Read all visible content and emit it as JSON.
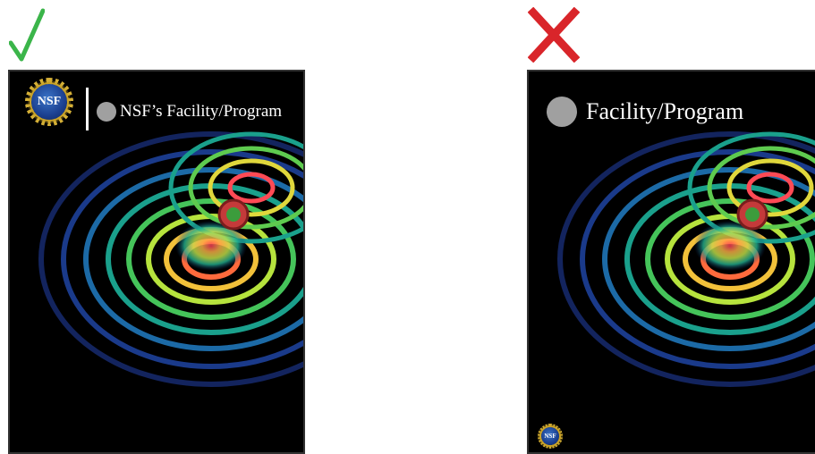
{
  "good_example": {
    "mark": "checkmark-icon",
    "mark_color": "#3bb54a",
    "seal_text": "NSF",
    "label": "NSF’s Facility/Program"
  },
  "bad_example": {
    "mark": "x-icon",
    "mark_color": "#d9252a",
    "seal_text": "NSF",
    "label": "Facility/Program"
  }
}
